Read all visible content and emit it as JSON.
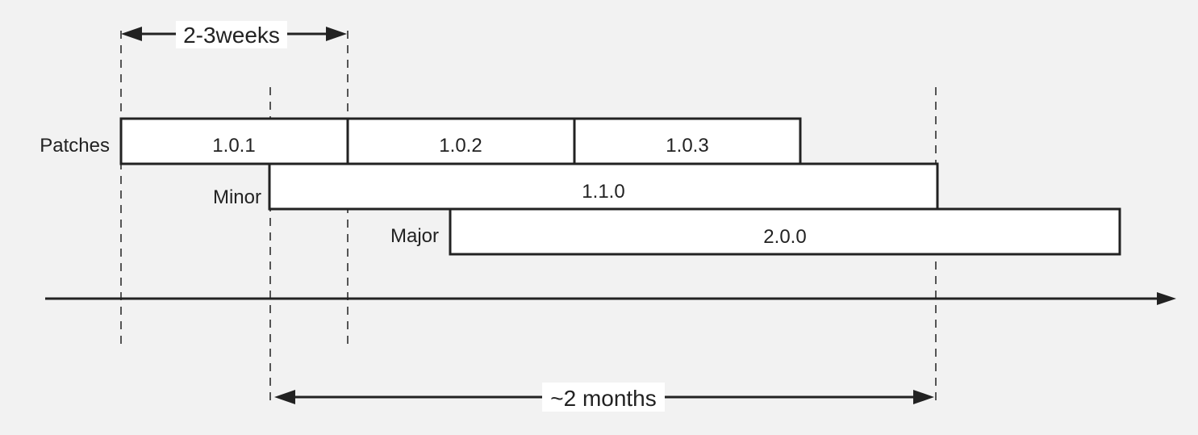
{
  "rows": {
    "patches": "Patches",
    "minor": "Minor",
    "major": "Major"
  },
  "bars": {
    "v101": "1.0.1",
    "v102": "1.0.2",
    "v103": "1.0.3",
    "v110": "1.1.0",
    "v200": "2.0.0"
  },
  "dimensions": {
    "patch_interval": "2-3weeks",
    "minor_interval": "~2 months"
  },
  "colors": {
    "background": "#f2f2f2",
    "bar_fill": "#ffffff",
    "stroke": "#222222",
    "guide": "#555555"
  }
}
